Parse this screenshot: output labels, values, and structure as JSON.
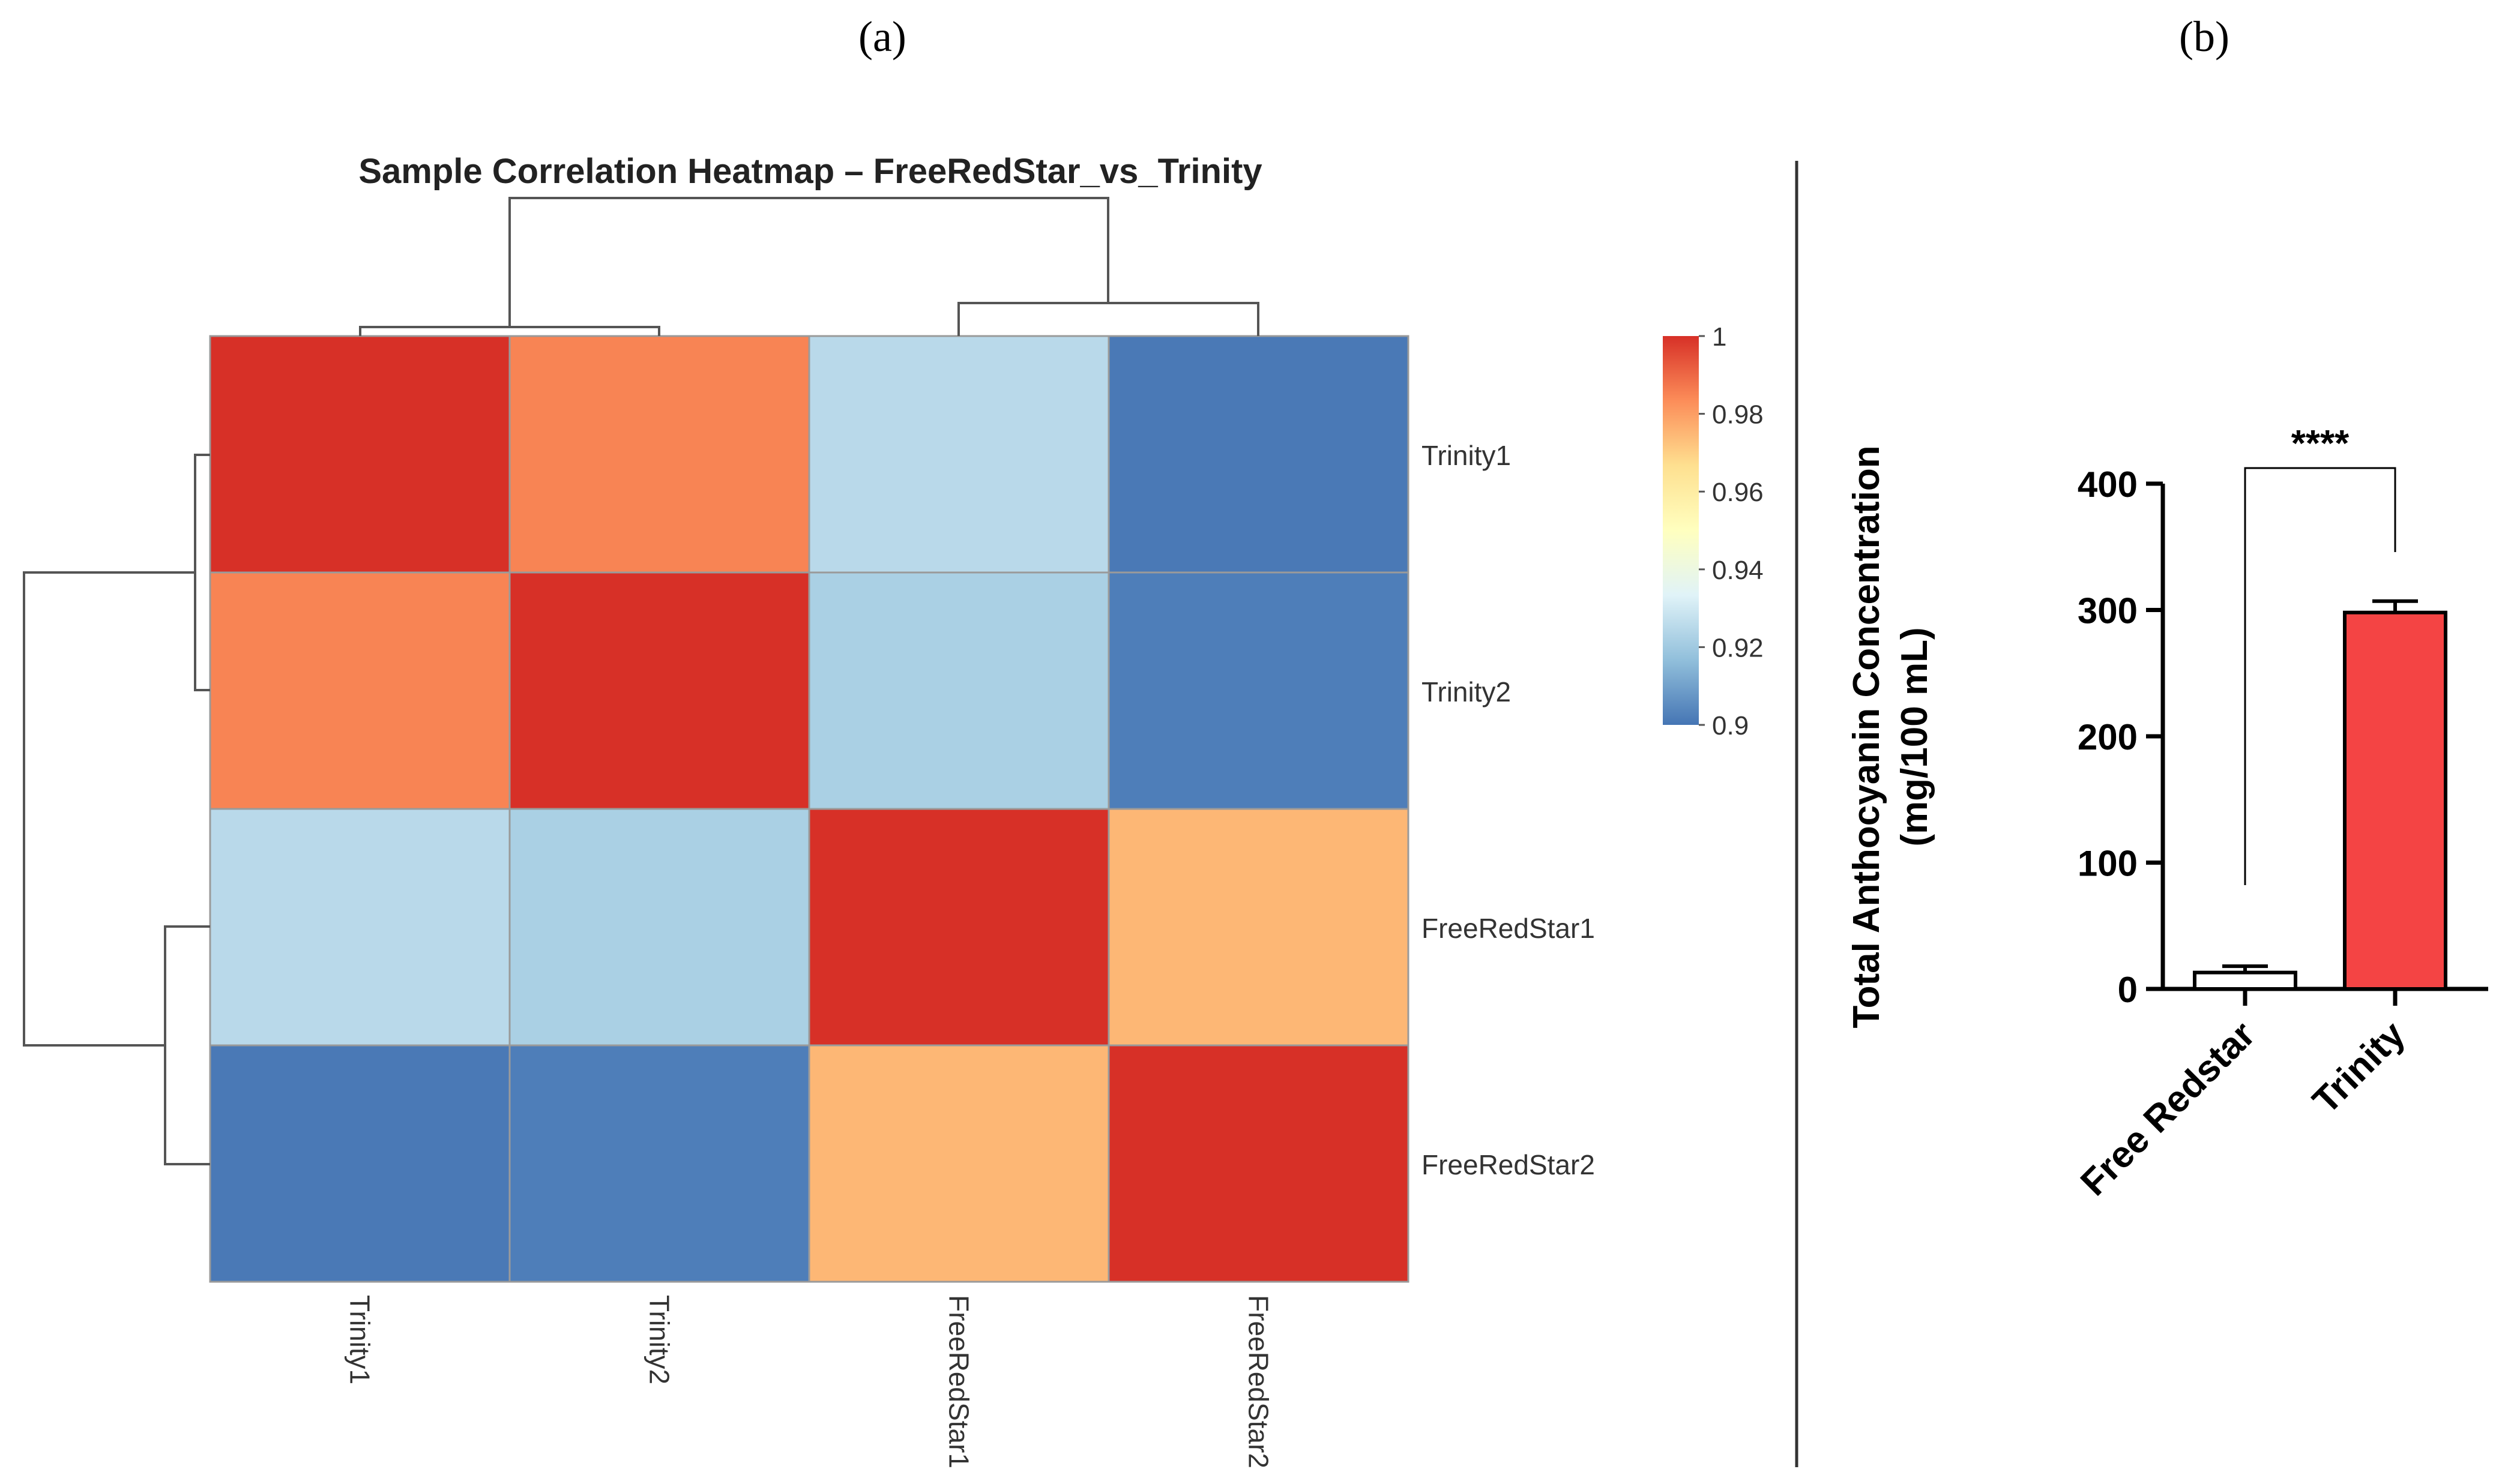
{
  "panels": {
    "a_label": "(a)",
    "b_label": "(b)"
  },
  "chart_data": [
    {
      "type": "heatmap",
      "title": "Sample Correlation Heatmap – FreeRedStar_vs_Trinity",
      "row_labels": [
        "Trinity1",
        "Trinity2",
        "FreeRedStar1",
        "FreeRedStar2"
      ],
      "col_labels": [
        "Trinity1",
        "Trinity2",
        "FreeRedStar1",
        "FreeRedStar2"
      ],
      "values": [
        [
          1.0,
          0.985,
          0.925,
          0.901
        ],
        [
          0.985,
          1.0,
          0.922,
          0.902
        ],
        [
          0.925,
          0.922,
          1.0,
          0.975
        ],
        [
          0.901,
          0.902,
          0.975,
          1.0
        ]
      ],
      "colorbar": {
        "min": 0.9,
        "max": 1,
        "ticks": [
          "1",
          "0.98",
          "0.96",
          "0.94",
          "0.92",
          "0.9"
        ],
        "colors": [
          "#4575b4",
          "#91bfdb",
          "#e0f3f8",
          "#ffffbf",
          "#fee090",
          "#fc8d59",
          "#d73027"
        ]
      },
      "dendrogram": "rows and columns clustered: {Trinity1, Trinity2} and {FreeRedStar1, FreeRedStar2}"
    },
    {
      "type": "bar",
      "categories": [
        "Free Redstar",
        "Trinity"
      ],
      "values": [
        13,
        298
      ],
      "errors": [
        5,
        9
      ],
      "ylabel": "Total Anthocyanin Concentration\n(mg/100 mL)",
      "ylabel_lines": [
        "Total Anthocyanin Concentration",
        "(mg/100 mL)"
      ],
      "ylim": [
        0,
        400
      ],
      "yticks": [
        "0",
        "100",
        "200",
        "300",
        "400"
      ],
      "significance": "****",
      "bar_colors": [
        "#ffffff",
        "#f44444"
      ]
    }
  ]
}
